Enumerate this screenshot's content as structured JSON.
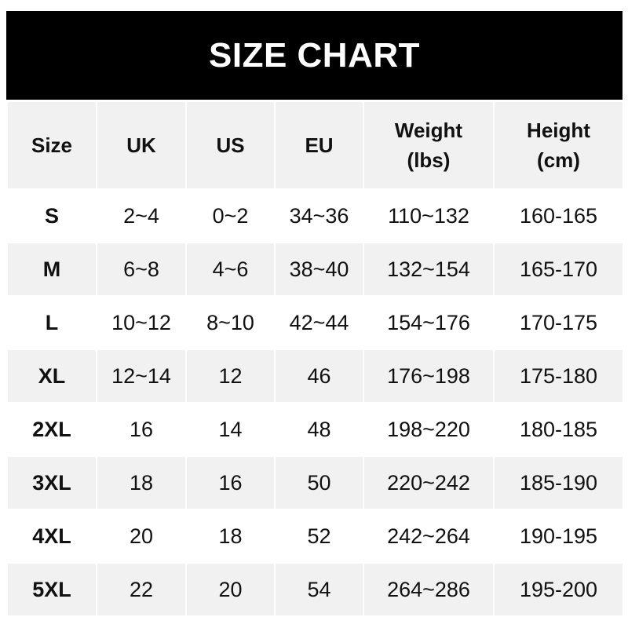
{
  "title": "SIZE CHART",
  "headers": [
    "Size",
    "UK",
    "US",
    "EU",
    "Weight (lbs)",
    "Height (cm)"
  ],
  "rows": [
    [
      "S",
      "2~4",
      "0~2",
      "34~36",
      "110~132",
      "160-165"
    ],
    [
      "M",
      "6~8",
      "4~6",
      "38~40",
      "132~154",
      "165-170"
    ],
    [
      "L",
      "10~12",
      "8~10",
      "42~44",
      "154~176",
      "170-175"
    ],
    [
      "XL",
      "12~14",
      "12",
      "46",
      "176~198",
      "175-180"
    ],
    [
      "2XL",
      "16",
      "14",
      "48",
      "198~220",
      "180-185"
    ],
    [
      "3XL",
      "18",
      "16",
      "50",
      "220~242",
      "185-190"
    ],
    [
      "4XL",
      "20",
      "18",
      "52",
      "242~264",
      "190-195"
    ],
    [
      "5XL",
      "22",
      "20",
      "54",
      "264~286",
      "195-200"
    ]
  ]
}
